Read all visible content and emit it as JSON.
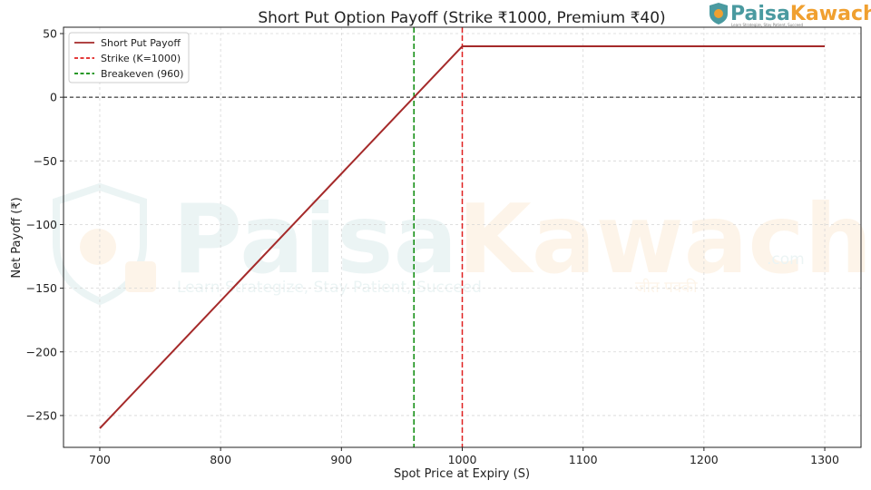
{
  "brand": {
    "logo_part1": "Paisa",
    "logo_part2": "Kawach",
    "logo_suffix": ".com",
    "tagline": "Learn Strategize, Stay Patient, Succeed",
    "tagline_hindi": "जीत पक्की",
    "color_primary": "#4a9aa0",
    "color_accent": "#f0a030"
  },
  "chart_data": {
    "type": "line",
    "title": "Short Put Option Payoff (Strike ₹1000, Premium ₹40)",
    "xlabel": "Spot Price at Expiry (S)",
    "ylabel": "Net Payoff (₹)",
    "xlim": [
      670,
      1330
    ],
    "ylim": [
      -275,
      55
    ],
    "xticks": [
      700,
      800,
      900,
      1000,
      1100,
      1200,
      1300
    ],
    "yticks": [
      50,
      0,
      -50,
      -100,
      -150,
      -200,
      -250
    ],
    "xtick_labels": [
      "700",
      "800",
      "900",
      "1000",
      "1100",
      "1200",
      "1300"
    ],
    "ytick_labels": [
      "50",
      "0",
      "−50",
      "−100",
      "−150",
      "−200",
      "−250"
    ],
    "grid": true,
    "legend_position": "top-left",
    "series": [
      {
        "name": "Short Put Payoff",
        "color": "#a52a2a",
        "style": "solid",
        "points": [
          [
            700,
            -260
          ],
          [
            1000,
            40
          ],
          [
            1300,
            40
          ]
        ]
      }
    ],
    "vlines": [
      {
        "name": "Strike (K=1000)",
        "x": 1000,
        "color": "#e02020",
        "style": "dashed"
      },
      {
        "name": "Breakeven (960)",
        "x": 960,
        "color": "#0a8a0a",
        "style": "dashed"
      }
    ],
    "hlines": [
      {
        "y": 0,
        "color": "#111111",
        "style": "dashed"
      }
    ]
  }
}
